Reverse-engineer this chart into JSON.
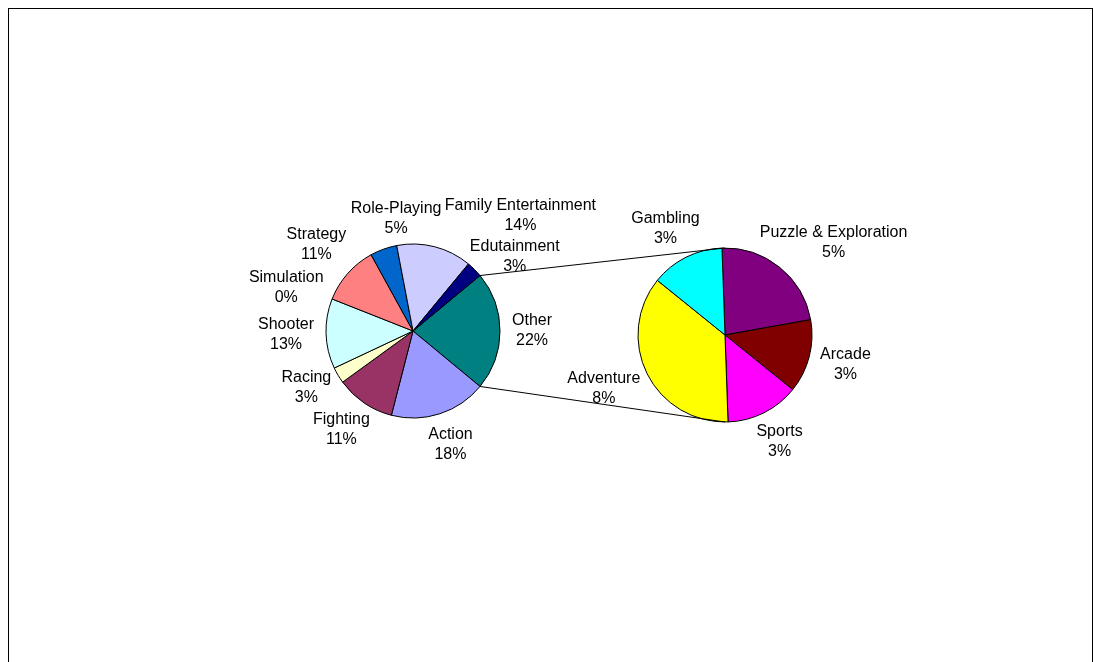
{
  "chart_data": [
    {
      "type": "pie",
      "categories": [
        "Other",
        "Action",
        "Fighting",
        "Racing",
        "Shooter",
        "Simulation",
        "Strategy",
        "Role-Playing",
        "Family Entertainment",
        "Edutainment"
      ],
      "values": [
        22,
        18,
        11,
        3,
        13,
        0,
        11,
        5,
        14,
        3
      ],
      "value_labels": [
        "22%",
        "18%",
        "11%",
        "3%",
        "13%",
        "0%",
        "11%",
        "5%",
        "14%",
        "3%"
      ],
      "colors": [
        "#008080",
        "#9999ff",
        "#993366",
        "#ffffcc",
        "#ccffff",
        "#660066",
        "#ff8080",
        "#0066cc",
        "#ccccff",
        "#000080"
      ],
      "legend": false
    },
    {
      "type": "pie",
      "categories": [
        "Puzzle & Exploration",
        "Arcade",
        "Sports",
        "Adventure",
        "Gambling"
      ],
      "values": [
        5,
        3,
        3,
        8,
        3
      ],
      "value_labels": [
        "5%",
        "3%",
        "3%",
        "8%",
        "3%"
      ],
      "colors": [
        "#800080",
        "#800000",
        "#ff00ff",
        "#ffff00",
        "#00ffff"
      ],
      "legend": false
    }
  ]
}
